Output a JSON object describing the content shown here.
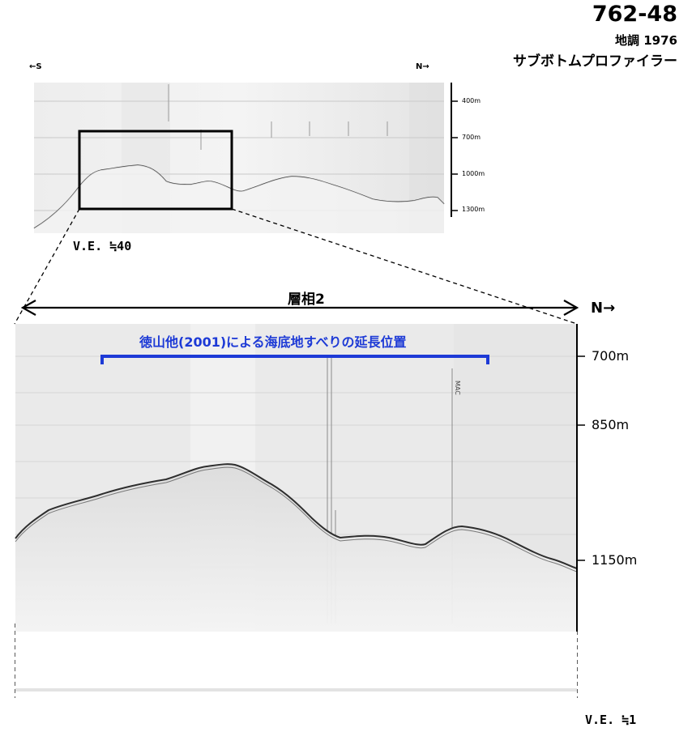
{
  "header": {
    "profile_id": "762-48",
    "survey": "地調 1976",
    "instrument": "サブボトムプロファイラー"
  },
  "overview": {
    "south_label": "←S",
    "north_label": "N→",
    "depth_labels": [
      "400m",
      "700m",
      "1000m",
      "1300m"
    ],
    "vertical_exaggeration": "V.E. ≒40"
  },
  "detail": {
    "facies_label": "層相2",
    "north_label": "N→",
    "annotation": "徳山他(2001)による海底地すべりの延長位置",
    "depth_labels": [
      "700m",
      "850m",
      "1150m"
    ],
    "vertical_exaggeration": "V.E. ≒1"
  },
  "colors": {
    "annotation_bracket": "#1d3ad6",
    "seafloor_trace": "#333333",
    "record_background": "#e9e9e9"
  }
}
